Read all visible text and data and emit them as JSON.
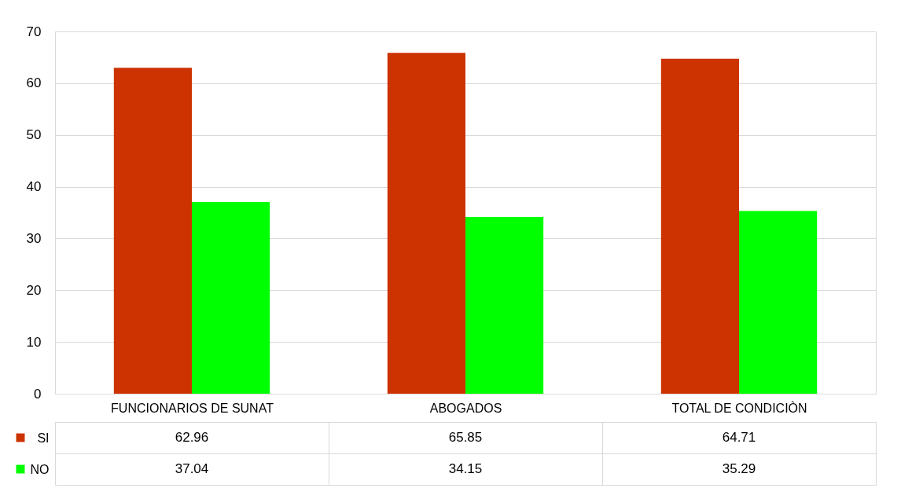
{
  "chart_data": {
    "type": "bar",
    "categories": [
      "FUNCIONARIOS DE SUNAT",
      "ABOGADOS",
      "TOTAL DE CONDICIÒN"
    ],
    "series": [
      {
        "name": "SI",
        "color": "#cc3300",
        "values": [
          62.96,
          65.85,
          64.71
        ]
      },
      {
        "name": "NO",
        "color": "#00ff00",
        "values": [
          37.04,
          34.15,
          35.29
        ]
      }
    ],
    "ylim": [
      0,
      70
    ],
    "yticks": [
      0,
      10,
      20,
      30,
      40,
      50,
      60,
      70
    ],
    "grid": "y",
    "data_labels": true,
    "legend": "bottom left"
  }
}
